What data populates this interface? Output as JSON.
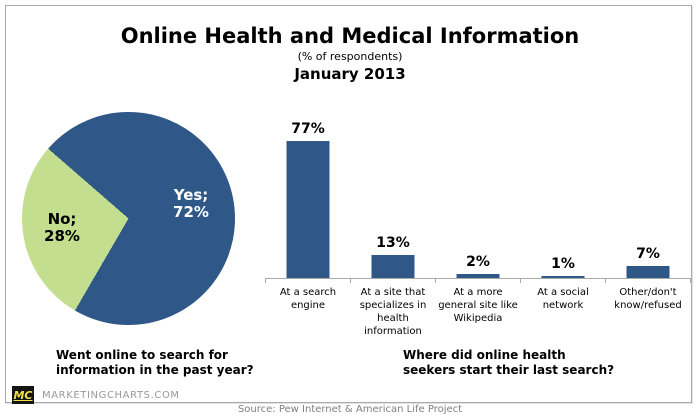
{
  "header": {
    "title": "Online Health and Medical Information",
    "subtitle": "(% of respondents)",
    "period": "January 2013"
  },
  "chart_data": [
    {
      "type": "pie",
      "title": "Went online to search for information in the past year?",
      "slices": [
        {
          "label": "Yes",
          "value": 72,
          "callout": "Yes;\n72%",
          "color": "#2f5787",
          "text_color": "#ffffff"
        },
        {
          "label": "No",
          "value": 28,
          "callout": "No;\n28%",
          "color": "#c2de8e",
          "text_color": "#000000"
        }
      ],
      "start_angle_deg": -49,
      "legend": "none"
    },
    {
      "type": "bar",
      "title": "Where did online health seekers start their last search?",
      "categories": [
        "At a search\nengine",
        "At a site that\nspecializes in\nhealth\ninformation",
        "At a more\ngeneral site like\nWikipedia",
        "At a social\nnetwork",
        "Other/don't\nknow/refused"
      ],
      "values": [
        77,
        13,
        2,
        1,
        7
      ],
      "value_labels": [
        "77%",
        "13%",
        "2%",
        "1%",
        "7%"
      ],
      "bar_color": "#2f5787",
      "ylim": [
        0,
        100
      ],
      "grid": false,
      "legend": "none"
    }
  ],
  "captions": {
    "pie": "Went online to search for\ninformation in the past year?",
    "bar": "Where did online health\nseekers start their last search?"
  },
  "footer": {
    "logo_text": "MC",
    "brand": "MARKETINGCHARTS.COM",
    "source": "Source: Pew Internet & American Life Project"
  }
}
